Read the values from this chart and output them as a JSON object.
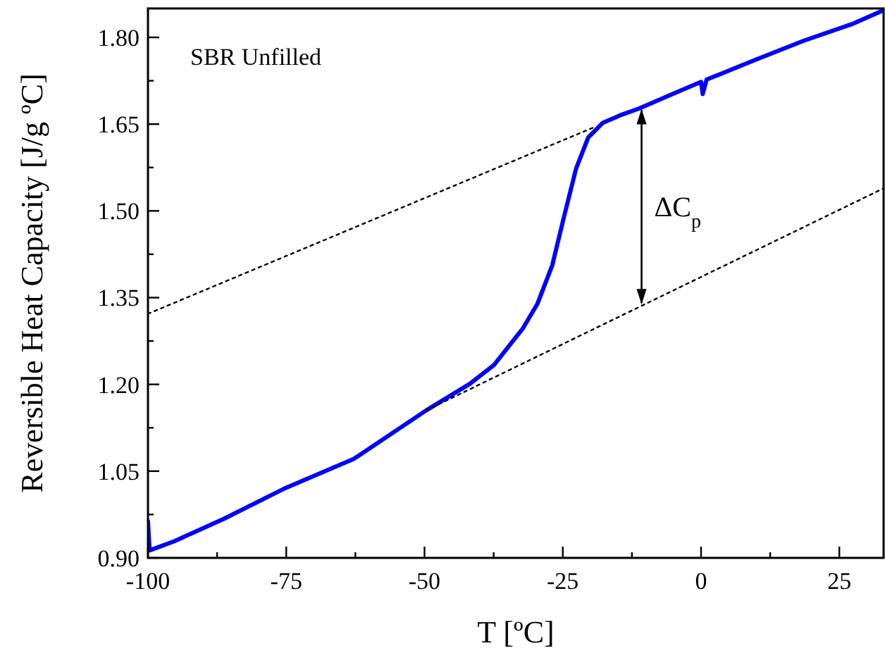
{
  "chart_data": {
    "type": "line",
    "xlabel": "T [ºC]",
    "ylabel": "Reversible Heat Capacity [J/g ºC]",
    "xlim": [
      -100,
      33
    ],
    "ylim": [
      0.9,
      1.85
    ],
    "xticks": [
      -100,
      {
        "value": -87.5,
        "label": null
      },
      -75,
      {
        "value": -62.5,
        "label": null
      },
      -50,
      {
        "value": -37.5,
        "label": null
      },
      -25,
      {
        "value": -12.5,
        "label": null
      },
      0,
      {
        "value": 12.5,
        "label": null
      },
      25
    ],
    "yticks": [
      {
        "value": 0.9,
        "label": "0.90"
      },
      {
        "value": 0.975,
        "label": null
      },
      {
        "value": 1.05,
        "label": "1.05"
      },
      {
        "value": 1.125,
        "label": null
      },
      {
        "value": 1.2,
        "label": "1.20"
      },
      {
        "value": 1.275,
        "label": null
      },
      {
        "value": 1.35,
        "label": "1.35"
      },
      {
        "value": 1.425,
        "label": null
      },
      {
        "value": 1.5,
        "label": "1.50"
      },
      {
        "value": 1.575,
        "label": null
      },
      {
        "value": 1.65,
        "label": "1.65"
      },
      {
        "value": 1.725,
        "label": null
      },
      {
        "value": 1.8,
        "label": "1.80"
      }
    ],
    "series": [
      {
        "color": "#0000ff",
        "line_style": "solid",
        "x": [
          -100,
          -99.7,
          -95.2,
          -86.4,
          -75.1,
          -62.8,
          -49.7,
          -41.8,
          -37.4,
          -32.2,
          -29.6,
          -26.9,
          -24.8,
          -22.6,
          -20.4,
          -17.8,
          -14.7,
          -11.2,
          -4.2,
          0,
          0.3,
          1,
          9.8,
          18.5,
          27.3,
          33
        ],
        "values": [
          0.963,
          0.913,
          0.929,
          0.967,
          1.021,
          1.071,
          1.155,
          1.201,
          1.234,
          1.297,
          1.339,
          1.406,
          1.489,
          1.573,
          1.627,
          1.652,
          1.665,
          1.677,
          1.706,
          1.723,
          1.702,
          1.727,
          1.761,
          1.794,
          1.823,
          1.847
        ]
      },
      {
        "color": "#000000",
        "line_style": "dotted",
        "x": [
          -100,
          -19.5
        ],
        "values": [
          1.322,
          1.644
        ]
      },
      {
        "color": "#000000",
        "line_style": "dotted",
        "x": [
          -49.7,
          33
        ],
        "values": [
          1.155,
          1.539
        ]
      }
    ],
    "annotations": [
      "SBR Unfilled",
      "ΔC$_{p}$"
    ]
  }
}
